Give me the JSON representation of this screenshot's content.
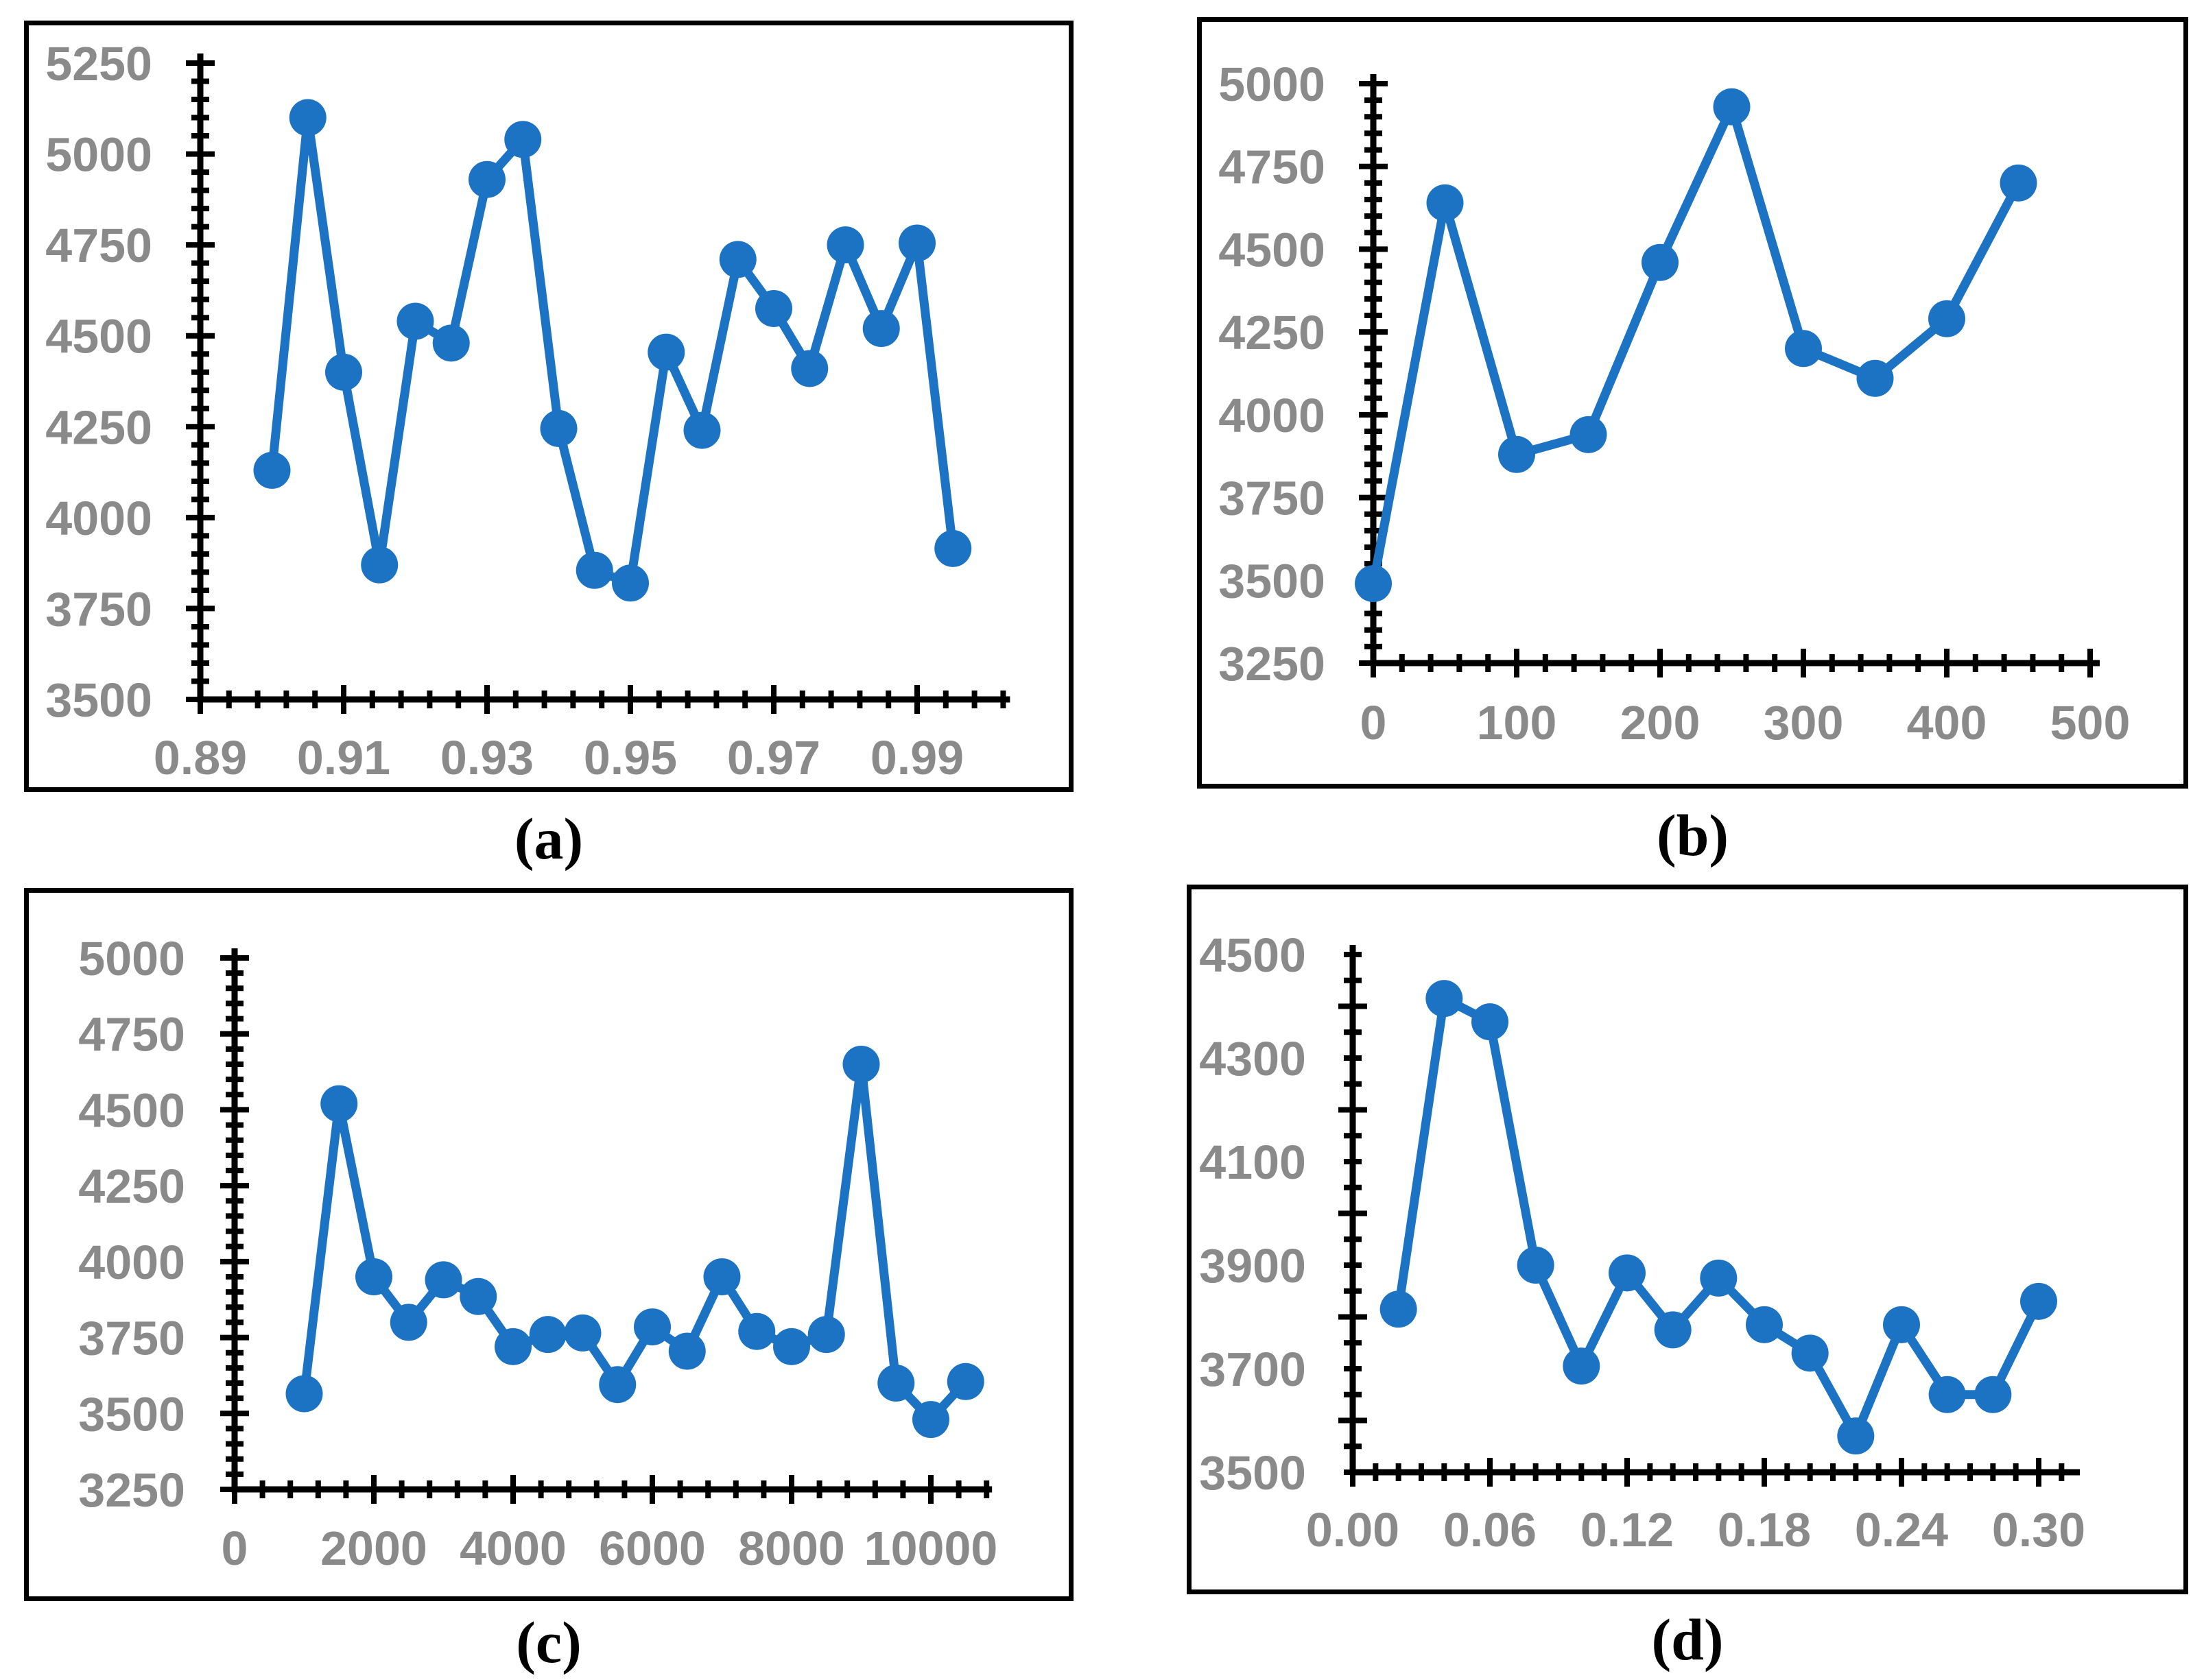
{
  "style": {
    "line_color": "#1C73C4",
    "marker_color": "#1C73C4",
    "axis_color": "#000000",
    "tick_label_color": "#8a8a8a",
    "panel_border_color": "#000000",
    "background": "#ffffff"
  },
  "chart_data": [
    {
      "id": "a",
      "type": "line",
      "caption": "(a)",
      "title": "",
      "xlabel": "",
      "ylabel": "",
      "grid": false,
      "legend": null,
      "marker": "circle",
      "x": [
        0.9,
        0.905,
        0.91,
        0.915,
        0.92,
        0.925,
        0.93,
        0.935,
        0.94,
        0.945,
        0.95,
        0.955,
        0.96,
        0.965,
        0.97,
        0.975,
        0.98,
        0.985,
        0.99,
        0.995
      ],
      "y": [
        4130,
        5100,
        4400,
        3870,
        4540,
        4480,
        4930,
        5040,
        4245,
        3855,
        3820,
        4455,
        4240,
        4710,
        4575,
        4410,
        4750,
        4520,
        4755,
        3915
      ],
      "x_axis": {
        "min": 0.89,
        "max": 1.002,
        "major_tick": 0.02,
        "minor_tick": 0.004,
        "tick_values": [
          0.89,
          0.91,
          0.93,
          0.95,
          0.97,
          0.99
        ],
        "tick_labels": [
          "0.89",
          "0.91",
          "0.93",
          "0.95",
          "0.97",
          "0.99"
        ]
      },
      "y_axis": {
        "min": 3500,
        "max": 5250,
        "major_tick": 250,
        "minor_tick": 50,
        "tick_values": [
          3500,
          3750,
          4000,
          4250,
          4500,
          4750,
          5000,
          5250
        ],
        "tick_labels": [
          "3500",
          "3750",
          "4000",
          "4250",
          "4500",
          "4750",
          "5000",
          "5250"
        ]
      }
    },
    {
      "id": "b",
      "type": "line",
      "caption": "(b)",
      "title": "",
      "xlabel": "",
      "ylabel": "",
      "grid": false,
      "legend": null,
      "marker": "circle",
      "x": [
        0,
        50,
        100,
        150,
        200,
        250,
        300,
        350,
        400,
        450
      ],
      "y": [
        3490,
        4640,
        3880,
        3940,
        4460,
        4930,
        4200,
        4110,
        4290,
        4700
      ],
      "x_axis": {
        "min": 0,
        "max": 500,
        "major_tick": 100,
        "minor_tick": 20,
        "tick_values": [
          0,
          100,
          200,
          300,
          400,
          500
        ],
        "tick_labels": [
          "0",
          "100",
          "200",
          "300",
          "400",
          "500"
        ]
      },
      "y_axis": {
        "min": 3250,
        "max": 5000,
        "major_tick": 250,
        "minor_tick": 50,
        "tick_values": [
          3250,
          3500,
          3750,
          4000,
          4250,
          4500,
          4750,
          5000
        ],
        "tick_labels": [
          "3250",
          "3500",
          "3750",
          "4000",
          "4250",
          "4500",
          "4750",
          "5000"
        ]
      }
    },
    {
      "id": "c",
      "type": "line",
      "caption": "(c)",
      "title": "",
      "xlabel": "",
      "ylabel": "",
      "grid": false,
      "legend": null,
      "marker": "circle",
      "x": [
        1000,
        1500,
        2000,
        2500,
        3000,
        3500,
        4000,
        4500,
        5000,
        5500,
        6000,
        6500,
        7000,
        7500,
        8000,
        8500,
        9000,
        9500,
        10000,
        10500
      ],
      "y": [
        3565,
        4520,
        3950,
        3800,
        3940,
        3885,
        3720,
        3760,
        3765,
        3595,
        3785,
        3705,
        3950,
        3770,
        3720,
        3760,
        4650,
        3600,
        3480,
        3605
      ],
      "x_axis": {
        "min": 0,
        "max": 10800,
        "major_tick": 2000,
        "minor_tick": 400,
        "tick_values": [
          0,
          2000,
          4000,
          6000,
          8000,
          10000
        ],
        "tick_labels": [
          "0",
          "2000",
          "4000",
          "6000",
          "8000",
          "10000"
        ]
      },
      "y_axis": {
        "min": 3250,
        "max": 5000,
        "major_tick": 250,
        "minor_tick": 50,
        "tick_values": [
          3250,
          3500,
          3750,
          4000,
          4250,
          4500,
          4750,
          5000
        ],
        "tick_labels": [
          "3250",
          "3500",
          "3750",
          "4000",
          "4250",
          "4500",
          "4750",
          "5000"
        ]
      }
    },
    {
      "id": "d",
      "type": "line",
      "caption": "(d)",
      "title": "",
      "xlabel": "",
      "ylabel": "",
      "grid": false,
      "legend": null,
      "marker": "circle",
      "x": [
        0.02,
        0.04,
        0.06,
        0.08,
        0.1,
        0.12,
        0.14,
        0.16,
        0.18,
        0.2,
        0.22,
        0.24,
        0.26,
        0.28,
        0.3
      ],
      "y": [
        3815,
        4415,
        4370,
        3900,
        3705,
        3885,
        3775,
        3875,
        3785,
        3730,
        3570,
        3785,
        3650,
        3650,
        3830
      ],
      "x_axis": {
        "min": 0,
        "max": 0.312,
        "major_tick": 0.06,
        "minor_tick": 0.01,
        "tick_values": [
          0.0,
          0.06,
          0.12,
          0.18,
          0.24,
          0.3
        ],
        "tick_labels": [
          "0.00",
          "0.06",
          "0.12",
          "0.18",
          "0.24",
          "0.30"
        ]
      },
      "y_axis": {
        "min": 3500,
        "max": 4500,
        "major_tick": 200,
        "minor_tick": 50,
        "tick_values": [
          3500,
          3700,
          3900,
          4100,
          4300,
          4500
        ],
        "tick_labels": [
          "3500",
          "3700",
          "3900",
          "4100",
          "4300",
          "4500"
        ]
      }
    }
  ]
}
